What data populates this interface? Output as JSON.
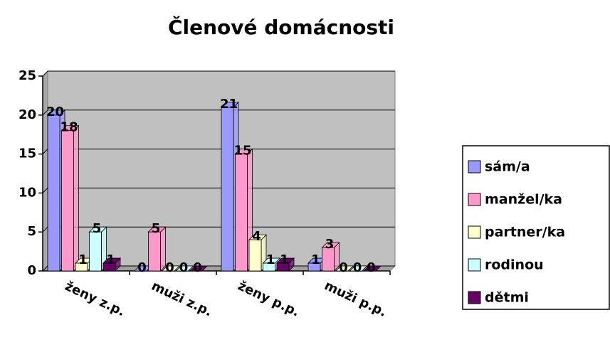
{
  "chart_data": {
    "type": "bar3d",
    "title": "Členové domácnosti",
    "categories": [
      "ženy z.p.",
      "muži z.p.",
      "ženy p.p.",
      "muži p.p."
    ],
    "series": [
      {
        "name": "sám/a",
        "color": "#9999ff",
        "values": [
          20,
          0,
          21,
          1
        ]
      },
      {
        "name": "manžel/ka",
        "color": "#ff99cc",
        "values": [
          18,
          5,
          15,
          3
        ]
      },
      {
        "name": "partner/ka",
        "color": "#ffffcc",
        "values": [
          1,
          0,
          4,
          0
        ]
      },
      {
        "name": "rodinou",
        "color": "#ccffff",
        "values": [
          5,
          0,
          1,
          0
        ]
      },
      {
        "name": "dětmi",
        "color": "#660066",
        "values": [
          1,
          0,
          1,
          0
        ]
      }
    ],
    "ylim": [
      0,
      25
    ],
    "yticks": [
      0,
      5,
      10,
      15,
      20,
      25
    ],
    "grid": true,
    "legend": "right"
  }
}
